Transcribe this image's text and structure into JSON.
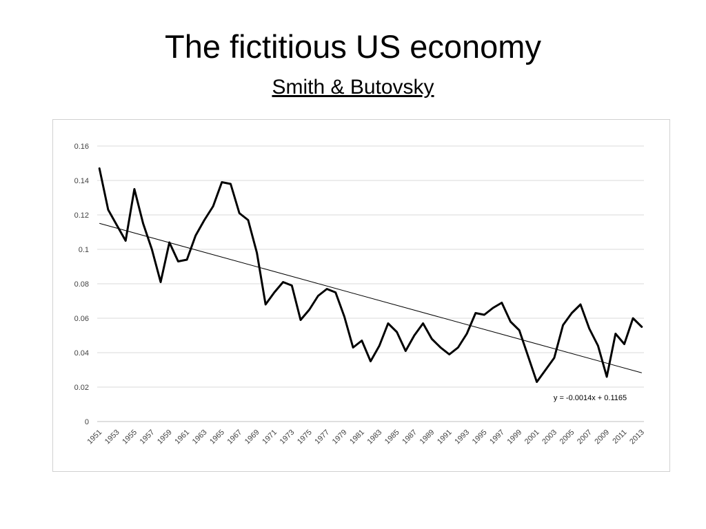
{
  "slide": {
    "title": "The fictitious US economy",
    "subtitle": "Smith & Butovsky"
  },
  "chart_data": {
    "type": "line",
    "title": "",
    "xlabel": "",
    "ylabel": "",
    "ylim": [
      0,
      0.16
    ],
    "y_ticks": [
      0,
      0.02,
      0.04,
      0.06,
      0.08,
      0.1,
      0.12,
      0.14,
      0.16
    ],
    "y_tick_labels": [
      "0",
      "0.02",
      "0.04",
      "0.06",
      "0.08",
      "0.1",
      "0.12",
      "0.14",
      "0.16"
    ],
    "x_tick_labels": [
      "1951",
      "1953",
      "1955",
      "1957",
      "1959",
      "1961",
      "1963",
      "1965",
      "1967",
      "1969",
      "1971",
      "1973",
      "1975",
      "1977",
      "1979",
      "1981",
      "1983",
      "1985",
      "1987",
      "1989",
      "1991",
      "1993",
      "1995",
      "1997",
      "1999",
      "2001",
      "2003",
      "2005",
      "2007",
      "2009",
      "2011",
      "2013"
    ],
    "grid": true,
    "line_color": "#000000",
    "series": [
      {
        "x": [
          1951,
          1952,
          1953,
          1954,
          1955,
          1956,
          1957,
          1958,
          1959,
          1960,
          1961,
          1962,
          1963,
          1964,
          1965,
          1966,
          1967,
          1968,
          1969,
          1970,
          1971,
          1972,
          1973,
          1974,
          1975,
          1976,
          1977,
          1978,
          1979,
          1980,
          1981,
          1982,
          1983,
          1984,
          1985,
          1986,
          1987,
          1988,
          1989,
          1990,
          1991,
          1992,
          1993,
          1994,
          1995,
          1996,
          1997,
          1998,
          1999,
          2000,
          2001,
          2002,
          2003,
          2004,
          2005,
          2006,
          2007,
          2008,
          2009,
          2010,
          2011,
          2012,
          2013
        ],
        "values": [
          0.147,
          0.123,
          0.114,
          0.105,
          0.135,
          0.115,
          0.1,
          0.081,
          0.104,
          0.093,
          0.094,
          0.108,
          0.117,
          0.125,
          0.139,
          0.138,
          0.121,
          0.117,
          0.098,
          0.068,
          0.075,
          0.081,
          0.079,
          0.059,
          0.065,
          0.073,
          0.077,
          0.075,
          0.061,
          0.043,
          0.047,
          0.035,
          0.044,
          0.057,
          0.052,
          0.041,
          0.05,
          0.057,
          0.048,
          0.043,
          0.039,
          0.043,
          0.051,
          0.063,
          0.062,
          0.066,
          0.069,
          0.058,
          0.053,
          0.038,
          0.023,
          0.03,
          0.037,
          0.056,
          0.063,
          0.068,
          0.054,
          0.044,
          0.026,
          0.051,
          0.045,
          0.06,
          0.055
        ]
      }
    ],
    "trendline": {
      "slope": -0.0014,
      "intercept": 0.1165,
      "equation_label": "y = -0.0014x + 0.1165"
    }
  }
}
